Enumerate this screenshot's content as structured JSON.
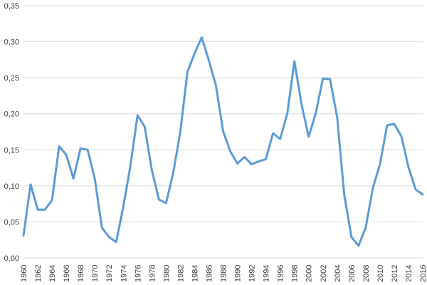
{
  "chart_data": {
    "type": "line",
    "title": "",
    "xlabel": "",
    "ylabel": "",
    "ylim": [
      0,
      0.35
    ],
    "yticks": [
      "0,00",
      "0,05",
      "0,10",
      "0,15",
      "0,20",
      "0,25",
      "0,30",
      "0,35"
    ],
    "ytick_values": [
      0,
      0.05,
      0.1,
      0.15,
      0.2,
      0.25,
      0.3,
      0.35
    ],
    "xticks": [
      "1960",
      "1962",
      "1964",
      "1966",
      "1968",
      "1970",
      "1972",
      "1974",
      "1976",
      "1978",
      "1980",
      "1982",
      "1984",
      "1986",
      "1988",
      "1990",
      "1992",
      "1994",
      "1996",
      "1998",
      "2000",
      "2002",
      "2004",
      "2006",
      "2008",
      "2010",
      "2012",
      "2014",
      "2016"
    ],
    "xlim": [
      1960,
      2016
    ],
    "grid": "horizontal",
    "legend": "none",
    "series": [
      {
        "color": "#5b9bd5",
        "x": [
          1960,
          1961,
          1962,
          1963,
          1964,
          1965,
          1966,
          1967,
          1968,
          1969,
          1970,
          1971,
          1972,
          1973,
          1974,
          1975,
          1976,
          1977,
          1978,
          1979,
          1980,
          1981,
          1982,
          1983,
          1984,
          1985,
          1986,
          1987,
          1988,
          1989,
          1990,
          1991,
          1992,
          1993,
          1994,
          1995,
          1996,
          1997,
          1998,
          1999,
          2000,
          2001,
          2002,
          2003,
          2004,
          2005,
          2006,
          2007,
          2008,
          2009,
          2010,
          2011,
          2012,
          2013,
          2014,
          2015,
          2016
        ],
        "values": [
          0.031,
          0.102,
          0.067,
          0.067,
          0.08,
          0.155,
          0.143,
          0.11,
          0.152,
          0.15,
          0.11,
          0.042,
          0.029,
          0.022,
          0.071,
          0.128,
          0.198,
          0.182,
          0.122,
          0.081,
          0.076,
          0.118,
          0.175,
          0.258,
          0.284,
          0.306,
          0.274,
          0.239,
          0.176,
          0.148,
          0.131,
          0.14,
          0.13,
          0.134,
          0.137,
          0.173,
          0.165,
          0.2,
          0.273,
          0.213,
          0.168,
          0.201,
          0.249,
          0.248,
          0.195,
          0.087,
          0.029,
          0.017,
          0.042,
          0.097,
          0.13,
          0.184,
          0.186,
          0.169,
          0.126,
          0.095,
          0.088
        ]
      }
    ]
  }
}
